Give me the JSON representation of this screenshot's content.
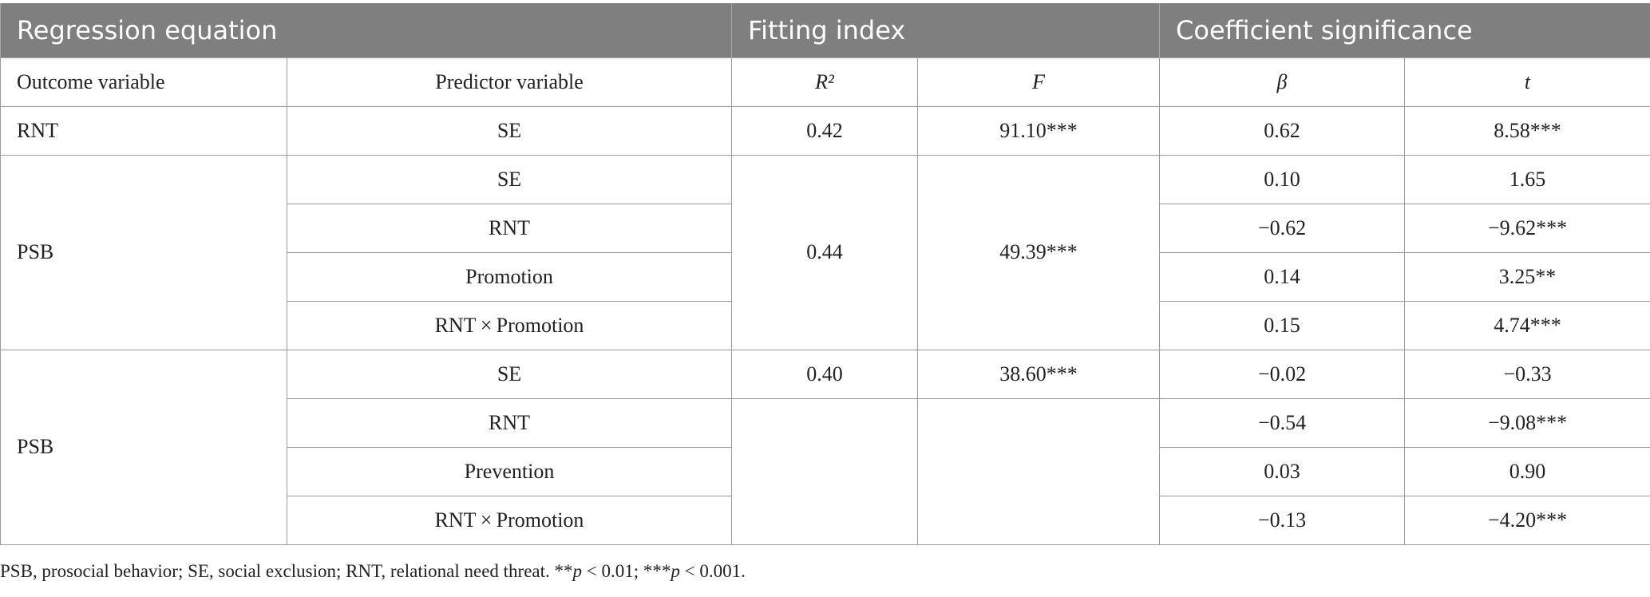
{
  "groups": [
    "Regression equation",
    "Fitting index",
    "Coefficient significance"
  ],
  "columns": {
    "outcome": "Outcome variable",
    "predictor": "Predictor variable",
    "r2": "R²",
    "f": "F",
    "beta": "β",
    "t": "t"
  },
  "model1": {
    "outcome": "RNT",
    "r2": "0.42",
    "f": "91.10***",
    "rows": [
      {
        "predictor": "SE",
        "beta": "0.62",
        "t": "8.58***"
      }
    ]
  },
  "model2": {
    "outcome": "PSB",
    "r2": "0.44",
    "f": "49.39***",
    "rows": [
      {
        "predictor": "SE",
        "beta": "0.10",
        "t": "1.65"
      },
      {
        "predictor": "RNT",
        "beta": "−0.62",
        "t": "−9.62***"
      },
      {
        "predictor": "Promotion",
        "beta": "0.14",
        "t": "3.25**"
      },
      {
        "predictor": "RNT × Promotion",
        "beta": "0.15",
        "t": "4.74***"
      }
    ]
  },
  "model3": {
    "outcome": "PSB",
    "r2": "0.40",
    "f": "38.60***",
    "rows": [
      {
        "predictor": "SE",
        "beta": "−0.02",
        "t": "−0.33"
      },
      {
        "predictor": "RNT",
        "beta": "−0.54",
        "t": "−9.08***"
      },
      {
        "predictor": "Prevention",
        "beta": "0.03",
        "t": "0.90"
      },
      {
        "predictor": "RNT × Promotion",
        "beta": "−0.13",
        "t": "−4.20***"
      }
    ]
  },
  "footnote": {
    "text": "PSB, prosocial behavior; SE, social exclusion; RNT, relational need threat. **",
    "p1": "p",
    "mid": " < 0.01; ***",
    "p2": "p",
    "end": " < 0.001."
  }
}
